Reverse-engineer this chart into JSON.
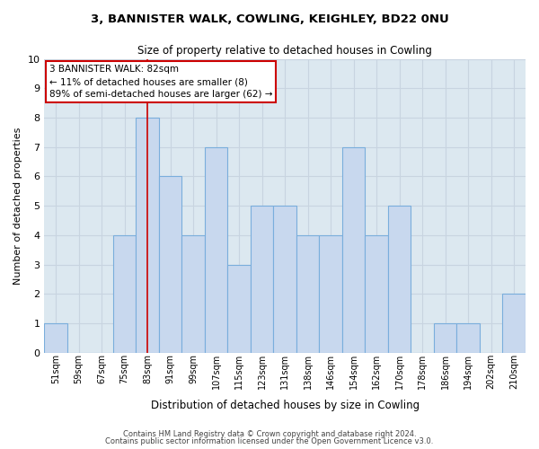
{
  "title": "3, BANNISTER WALK, COWLING, KEIGHLEY, BD22 0NU",
  "subtitle": "Size of property relative to detached houses in Cowling",
  "xlabel": "Distribution of detached houses by size in Cowling",
  "ylabel": "Number of detached properties",
  "bar_labels": [
    "51sqm",
    "59sqm",
    "67sqm",
    "75sqm",
    "83sqm",
    "91sqm",
    "99sqm",
    "107sqm",
    "115sqm",
    "123sqm",
    "131sqm",
    "138sqm",
    "146sqm",
    "154sqm",
    "162sqm",
    "170sqm",
    "178sqm",
    "186sqm",
    "194sqm",
    "202sqm",
    "210sqm"
  ],
  "bar_values": [
    1,
    0,
    0,
    4,
    8,
    6,
    4,
    7,
    3,
    5,
    5,
    4,
    4,
    7,
    4,
    5,
    0,
    1,
    1,
    0,
    2
  ],
  "bar_color": "#c8d8ee",
  "bar_edge_color": "#7aaedc",
  "highlight_index": 4,
  "highlight_line_color": "#cc0000",
  "ylim": [
    0,
    10
  ],
  "yticks": [
    0,
    1,
    2,
    3,
    4,
    5,
    6,
    7,
    8,
    9,
    10
  ],
  "annotation_title": "3 BANNISTER WALK: 82sqm",
  "annotation_line1": "← 11% of detached houses are smaller (8)",
  "annotation_line2": "89% of semi-detached houses are larger (62) →",
  "annotation_box_color": "#ffffff",
  "annotation_box_edge": "#cc0000",
  "grid_color": "#c8d4e0",
  "bg_color": "#dce8f0",
  "fig_bg_color": "#ffffff",
  "footer1": "Contains HM Land Registry data © Crown copyright and database right 2024.",
  "footer2": "Contains public sector information licensed under the Open Government Licence v3.0."
}
